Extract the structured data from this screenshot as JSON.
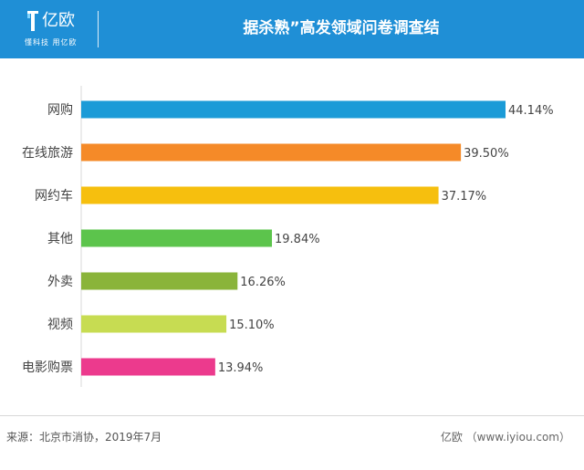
{
  "header": {
    "logo_text": "亿欧",
    "logo_tagline": "懂科技 用亿欧",
    "title": "据杀熟”高发领域问卷调查结"
  },
  "chart_data": {
    "type": "bar",
    "orientation": "horizontal",
    "categories": [
      "网购",
      "在线旅游",
      "网约车",
      "其他",
      "外卖",
      "视频",
      "电影购票"
    ],
    "values": [
      44.14,
      39.5,
      37.17,
      19.84,
      16.26,
      15.1,
      13.94
    ],
    "value_labels": [
      "44.14%",
      "39.50%",
      "37.17%",
      "19.84%",
      "16.26%",
      "15.10%",
      "13.94%"
    ],
    "colors": [
      "#1b9bd7",
      "#f58a28",
      "#f6bf0e",
      "#5cc44c",
      "#8ab43a",
      "#c7dc52",
      "#ec3a8d"
    ],
    "xlim": [
      0,
      44.14
    ],
    "grid": false,
    "legend": "none",
    "title": "",
    "xlabel": "",
    "ylabel": ""
  },
  "footer": {
    "source": "来源：北京市消协，2019年7月",
    "credit": "亿欧 （www.iyiou.com）"
  }
}
